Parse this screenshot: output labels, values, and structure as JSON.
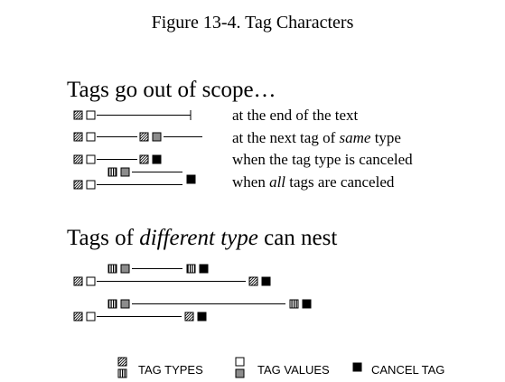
{
  "figure": {
    "title": "Figure 13-4. Tag Characters"
  },
  "section_scope": {
    "heading": "Tags go out of scope…",
    "rows": [
      {
        "parts": [
          {
            "text": "at the end of the text",
            "italic": false
          }
        ]
      },
      {
        "parts": [
          {
            "text": "at the next tag of ",
            "italic": false
          },
          {
            "text": "same",
            "italic": true
          },
          {
            "text": " type",
            "italic": false
          }
        ]
      },
      {
        "parts": [
          {
            "text": "when the tag type is canceled",
            "italic": false
          }
        ]
      },
      {
        "parts": [
          {
            "text": "when ",
            "italic": false
          },
          {
            "text": "all",
            "italic": true
          },
          {
            "text": " tags are canceled",
            "italic": false
          }
        ]
      }
    ]
  },
  "section_nest": {
    "heading_parts": [
      {
        "text": "Tags of ",
        "italic": false
      },
      {
        "text": "different type",
        "italic": true
      },
      {
        "text": " can nest",
        "italic": false
      }
    ]
  },
  "legend": {
    "tag_types_label": "TAG TYPES",
    "tag_values_label": "TAG VALUES",
    "cancel_tag_label": "CANCEL TAG"
  }
}
